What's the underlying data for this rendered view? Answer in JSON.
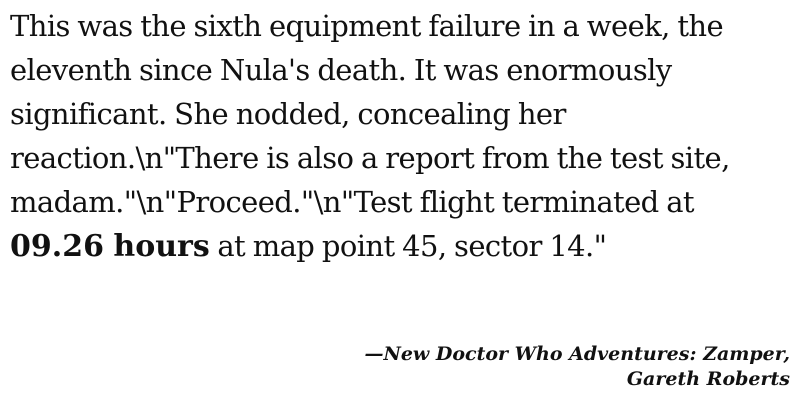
{
  "passage": {
    "text_before": "This was the sixth equipment failure in a week, the eleventh since Nula's death. It was enormously significant. She nodded, concealing her reaction.\\n\"There is also a report from the test site, madam.\"\\n\"Proceed.\"\\n\"Test flight terminated at ",
    "emphasis": "09.26 hours",
    "text_after": " at map point 45, sector 14.\""
  },
  "attribution": {
    "line1": "—New Doctor Who Adventures: Zamper,",
    "line2": "Gareth Roberts"
  }
}
